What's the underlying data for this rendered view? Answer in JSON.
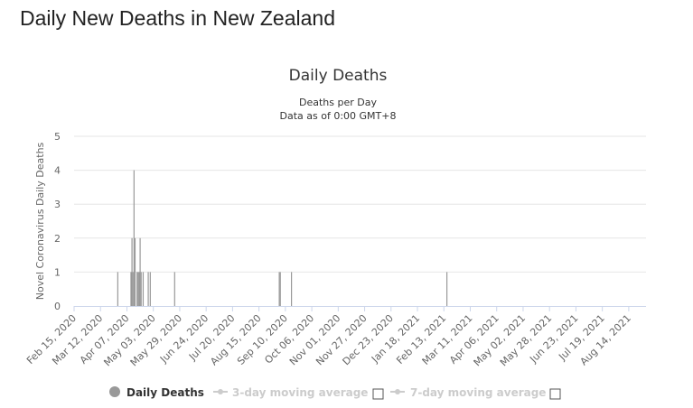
{
  "page": {
    "title": "Daily New Deaths in New Zealand"
  },
  "chart_data": {
    "type": "bar",
    "title": "Daily Deaths",
    "subtitle_lines": [
      "Deaths per Day",
      "Data as of 0:00 GMT+8"
    ],
    "ylabel": "Novel Coronavirus Daily Deaths",
    "xlabel": "",
    "ylim": [
      0,
      5
    ],
    "yticks": [
      0,
      1,
      2,
      3,
      4,
      5
    ],
    "grid": true,
    "legend_position": "bottom",
    "x_start": "2020-02-15",
    "x_end": "2021-08-31",
    "xtick_labels": [
      "Feb 15, 2020",
      "Mar 12, 2020",
      "Apr 07, 2020",
      "May 03, 2020",
      "May 29, 2020",
      "Jun 24, 2020",
      "Jul 20, 2020",
      "Aug 15, 2020",
      "Sep 10, 2020",
      "Oct 06, 2020",
      "Nov 01, 2020",
      "Nov 27, 2020",
      "Dec 23, 2020",
      "Jan 18, 2021",
      "Feb 13, 2021",
      "Mar 11, 2021",
      "Apr 06, 2021",
      "May 02, 2021",
      "May 28, 2021",
      "Jun 23, 2021",
      "Jul 19, 2021",
      "Aug 14, 2021"
    ],
    "bar_color": "#999999",
    "series": [
      {
        "name": "Daily Deaths",
        "points": [
          {
            "x": "2020-03-29",
            "y": 1
          },
          {
            "x": "2020-04-11",
            "y": 1
          },
          {
            "x": "2020-04-12",
            "y": 2
          },
          {
            "x": "2020-04-13",
            "y": 1
          },
          {
            "x": "2020-04-14",
            "y": 4
          },
          {
            "x": "2020-04-15",
            "y": 2
          },
          {
            "x": "2020-04-17",
            "y": 1
          },
          {
            "x": "2020-04-18",
            "y": 1
          },
          {
            "x": "2020-04-19",
            "y": 1
          },
          {
            "x": "2020-04-20",
            "y": 2
          },
          {
            "x": "2020-04-21",
            "y": 1
          },
          {
            "x": "2020-04-23",
            "y": 1
          },
          {
            "x": "2020-04-28",
            "y": 1
          },
          {
            "x": "2020-04-30",
            "y": 1
          },
          {
            "x": "2020-05-24",
            "y": 1
          },
          {
            "x": "2020-09-04",
            "y": 1
          },
          {
            "x": "2020-09-05",
            "y": 1
          },
          {
            "x": "2020-09-16",
            "y": 1
          },
          {
            "x": "2021-02-16",
            "y": 1
          }
        ]
      }
    ],
    "legend": [
      {
        "label": "Daily Deaths",
        "color": "#999999",
        "active": true
      },
      {
        "label": "3-day moving average",
        "color": "#cccccc",
        "active": false
      },
      {
        "label": "7-day moving average",
        "color": "#cccccc",
        "active": false
      }
    ]
  }
}
